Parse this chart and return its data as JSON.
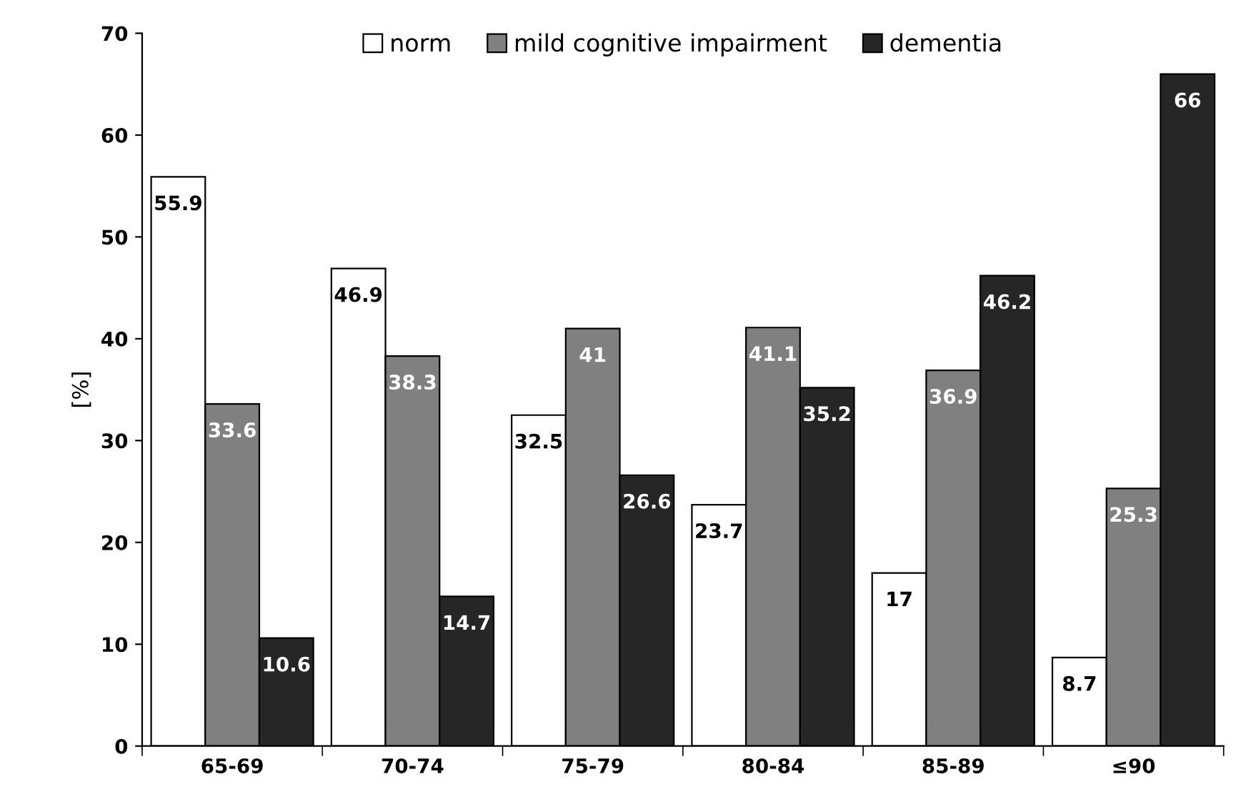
{
  "chart_data": {
    "type": "bar",
    "ylabel": "[%]",
    "categories": [
      "65-69",
      "70-74",
      "75-79",
      "80-84",
      "85-89",
      "≤90"
    ],
    "series": [
      {
        "name": "norm",
        "color": "#ffffff",
        "values": [
          55.9,
          46.9,
          32.5,
          23.7,
          17,
          8.7
        ]
      },
      {
        "name": "mild cognitive impairment",
        "color": "#808080",
        "values": [
          33.6,
          38.3,
          41,
          41.1,
          36.9,
          25.3
        ]
      },
      {
        "name": "dementia",
        "color": "#262626",
        "values": [
          10.6,
          14.7,
          26.6,
          35.2,
          46.2,
          66
        ]
      }
    ],
    "ylim": [
      0,
      70
    ],
    "yticks": [
      0,
      10,
      20,
      30,
      40,
      50,
      60,
      70
    ],
    "data_labels": true,
    "legend": "top",
    "grid": false
  }
}
